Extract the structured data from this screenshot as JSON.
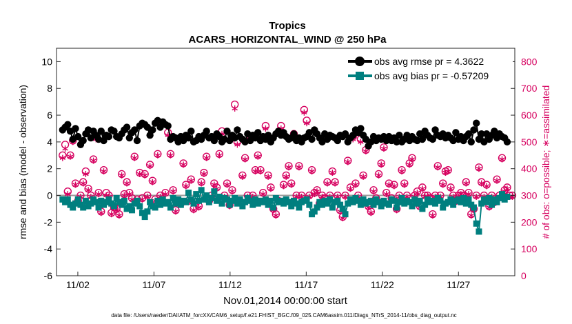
{
  "chart_data": {
    "type": "line",
    "title": "Tropics",
    "subtitle": "ACARS_HORIZONTAL_WIND @ 250 hPa",
    "xlabel": "Nov.01,2014 00:00:00 start",
    "ylabel": "rmse and bias (model - observation)",
    "ylabel_right": "# of obs: o=possible; ∗=assimilated",
    "footer": "data file: /Users/raeder/DAI/ATM_forcXX/CAM6_setup/f.e21.FHIST_BGC.f09_025.CAM6assim.011/Diags_NTrS_2014-11/obs_diag_output.nc",
    "x_tick_labels": [
      "11/02",
      "11/07",
      "11/12",
      "11/17",
      "11/22",
      "11/27"
    ],
    "x_tick_days": [
      2,
      7,
      12,
      17,
      22,
      27
    ],
    "xlim_days": [
      0.6,
      30.7
    ],
    "y_ticks": [
      10,
      8,
      6,
      4,
      2,
      0,
      -2,
      -4,
      -6
    ],
    "ylim": [
      -6,
      11
    ],
    "y2_ticks": [
      800,
      700,
      600,
      500,
      400,
      300,
      200,
      100,
      0
    ],
    "y2lim": [
      0,
      850
    ],
    "grid": false,
    "legend_position": "top-right",
    "colors": {
      "rmse": "#000000",
      "bias": "#007f7f",
      "obs": "#d6005f",
      "zero_line": "#999999"
    },
    "series": [
      {
        "name": "obs avg rmse pr = 4.3622",
        "marker": "circle",
        "values": [
          4.9,
          5.1,
          5.3,
          4.8,
          4.2,
          5.0,
          4.4,
          3.8,
          4.1,
          4.6,
          4.9,
          4.3,
          4.8,
          4.5,
          4.2,
          4.8,
          4.1,
          4.5,
          4.4,
          4.9,
          4.8,
          4.4,
          4.3,
          4.6,
          4.9,
          5.1,
          4.3,
          4.7,
          4.9,
          4.1,
          5.2,
          5.4,
          5.3,
          5.1,
          4.5,
          4.9,
          5.4,
          5.6,
          5.1,
          5.5,
          5.3,
          5.2,
          4.2,
          4.4,
          4.3,
          4.0,
          4.4,
          4.1,
          4.5,
          4.3,
          4.8,
          4.0,
          4.1,
          4.4,
          4.2,
          4.5,
          4.8,
          4.3,
          4.4,
          4.1,
          4.6,
          4.4,
          4.0,
          4.2,
          4.8,
          4.1,
          4.5,
          4.3,
          4.9,
          4.4,
          4.2,
          4.0,
          4.6,
          4.1,
          4.5,
          4.3,
          4.7,
          4.1,
          4.4,
          4.2,
          4.5,
          4.0,
          4.3,
          4.6,
          4.8,
          4.5,
          4.7,
          4.4,
          4.2,
          4.3,
          4.6,
          4.1,
          4.3,
          4.0,
          4.3,
          4.4,
          4.7,
          4.2,
          4.9,
          4.6,
          4.3,
          4.0,
          4.6,
          4.2,
          4.5,
          4.4,
          4.3,
          4.1,
          4.5,
          4.4,
          4.6,
          4.0,
          4.3,
          4.5,
          4.9,
          4.7,
          5.0,
          4.5,
          4.2,
          3.7,
          4.0,
          4.4,
          4.1,
          4.3,
          4.2,
          4.4,
          4.1,
          4.4,
          4.1,
          4.3,
          4.0,
          4.5,
          4.0,
          4.2,
          4.5,
          4.1,
          4.4,
          4.2,
          4.1,
          4.6,
          4.2,
          4.8,
          4.5,
          4.3,
          4.2,
          4.9,
          4.5,
          4.4,
          4.6,
          4.3,
          4.5,
          4.3,
          4.1,
          4.7,
          4.2,
          4.4,
          4.1,
          4.4,
          4.6,
          4.0,
          4.9,
          5.4,
          4.2,
          4.6,
          4.0,
          4.6,
          4.2,
          4.5,
          4.8,
          4.3,
          4.6,
          4.4,
          4.3,
          4.0
        ]
      },
      {
        "name": "obs avg bias pr = -0.57209",
        "marker": "square",
        "values": [
          -0.3,
          -0.5,
          -0.3,
          -0.7,
          -0.9,
          -0.6,
          -0.3,
          -0.7,
          -0.9,
          -0.4,
          -0.8,
          -0.6,
          -0.3,
          -0.5,
          -0.9,
          -0.4,
          -0.7,
          -0.5,
          -0.3,
          -0.6,
          -0.8,
          -0.2,
          -0.5,
          -0.7,
          -0.4,
          -1.0,
          -0.8,
          -1.1,
          -0.6,
          -0.4,
          -0.8,
          -1.3,
          -1.6,
          -1.2,
          -0.5,
          -0.8,
          -0.9,
          -0.4,
          -0.7,
          -0.3,
          -0.6,
          -0.5,
          -0.9,
          -0.2,
          -0.6,
          -0.3,
          -0.7,
          -0.4,
          -0.5,
          0.2,
          -0.3,
          -0.6,
          0.1,
          -0.4,
          0.4,
          -0.3,
          0.0,
          -0.5,
          -0.2,
          0.3,
          -0.4,
          -0.1,
          -0.6,
          -0.2,
          -0.3,
          -0.7,
          -0.4,
          -0.2,
          -0.6,
          -0.3,
          -0.8,
          -0.5,
          -0.2,
          -0.4,
          -0.7,
          -0.3,
          -0.6,
          -0.4,
          -0.5,
          -0.3,
          -0.7,
          -0.4,
          -0.9,
          -0.2,
          -0.5,
          -0.4,
          -0.6,
          -0.3,
          -0.5,
          -0.8,
          -0.4,
          -0.6,
          -0.9,
          -0.5,
          -0.4,
          -0.3,
          -0.7,
          -1.4,
          -1.2,
          -0.9,
          -0.5,
          -0.7,
          -0.4,
          -0.6,
          -0.3,
          -0.9,
          -0.5,
          -0.4,
          -0.7,
          -1.0,
          -1.4,
          -0.6,
          -0.3,
          -0.5,
          -0.2,
          -0.4,
          -0.7,
          -0.3,
          -0.6,
          -0.5,
          -0.4,
          -0.7,
          -0.3,
          -0.5,
          -0.8,
          -0.4,
          -0.6,
          -0.7,
          -0.3,
          -0.4,
          -0.9,
          -0.5,
          -0.2,
          -0.6,
          -0.4,
          -0.5,
          -0.8,
          -0.3,
          -0.6,
          -0.4,
          -1.0,
          -0.7,
          -0.3,
          -0.5,
          -0.4,
          -0.6,
          -0.2,
          -0.4,
          -0.9,
          -0.6,
          -0.5,
          -0.3,
          -0.7,
          -0.4,
          -0.3,
          -0.5,
          -0.2,
          -0.6,
          -0.3,
          -0.7,
          -0.9,
          -2.1,
          -2.7,
          -0.6,
          -0.3,
          -0.5,
          -0.2,
          -0.7,
          -0.3,
          -0.5,
          -0.2,
          0.1,
          -0.3,
          -0.1
        ]
      }
    ],
    "obs_counts": {
      "name": "# of obs",
      "possible": [
        450,
        490,
        315,
        450,
        505,
        345,
        280,
        300,
        350,
        390,
        325,
        300,
        435,
        520,
        310,
        240,
        395,
        310,
        300,
        235,
        255,
        250,
        230,
        380,
        305,
        350,
        310,
        290,
        445,
        285,
        385,
        290,
        380,
        300,
        415,
        355,
        285,
        455,
        300,
        570,
        310,
        535,
        455,
        320,
        245,
        280,
        270,
        420,
        340,
        280,
        360,
        250,
        275,
        260,
        350,
        385,
        445,
        280,
        300,
        345,
        330,
        455,
        540,
        300,
        345,
        265,
        320,
        640,
        500,
        280,
        375,
        440,
        300,
        520,
        300,
        395,
        450,
        395,
        310,
        560,
        375,
        330,
        250,
        230,
        280,
        560,
        340,
        375,
        410,
        345,
        530,
        300,
        410,
        300,
        620,
        580,
        300,
        395,
        310,
        320,
        270,
        300,
        290,
        350,
        300,
        390,
        350,
        300,
        245,
        220,
        300,
        430,
        330,
        520,
        345,
        300,
        510,
        375,
        470,
        260,
        240,
        320,
        290,
        380,
        420,
        480,
        310,
        345,
        290,
        340,
        250,
        300,
        395,
        345,
        300,
        420,
        440,
        300,
        315,
        260,
        330,
        300,
        300,
        290,
        230,
        300,
        410,
        300,
        345,
        390,
        395,
        330,
        300,
        280,
        300,
        310,
        300,
        350,
        310,
        230,
        250,
        300,
        405,
        350,
        300,
        340,
        260,
        300,
        275,
        360,
        300,
        440,
        320,
        330,
        300,
        300
      ],
      "assimilated": [
        440,
        475,
        305,
        445,
        500,
        340,
        275,
        295,
        345,
        380,
        320,
        295,
        430,
        510,
        305,
        235,
        390,
        300,
        295,
        230,
        250,
        245,
        225,
        375,
        300,
        345,
        305,
        285,
        440,
        280,
        380,
        285,
        375,
        295,
        410,
        350,
        280,
        450,
        295,
        560,
        305,
        525,
        450,
        315,
        240,
        275,
        265,
        415,
        335,
        275,
        355,
        245,
        270,
        255,
        345,
        380,
        440,
        275,
        295,
        340,
        325,
        450,
        530,
        295,
        340,
        260,
        315,
        625,
        490,
        275,
        370,
        435,
        295,
        510,
        295,
        390,
        445,
        390,
        305,
        550,
        370,
        325,
        245,
        225,
        275,
        550,
        335,
        370,
        405,
        340,
        520,
        295,
        405,
        295,
        610,
        570,
        295,
        390,
        305,
        315,
        265,
        295,
        285,
        345,
        295,
        385,
        345,
        295,
        240,
        215,
        295,
        425,
        325,
        510,
        340,
        295,
        500,
        370,
        465,
        255,
        235,
        315,
        285,
        375,
        415,
        475,
        305,
        340,
        285,
        335,
        245,
        295,
        390,
        340,
        295,
        415,
        435,
        295,
        310,
        255,
        325,
        295,
        295,
        285,
        225,
        295,
        405,
        295,
        340,
        385,
        390,
        325,
        295,
        275,
        295,
        305,
        295,
        345,
        305,
        225,
        245,
        295,
        400,
        345,
        295,
        335,
        255,
        295,
        270,
        355,
        295,
        435,
        315,
        325,
        295,
        295
      ]
    }
  }
}
